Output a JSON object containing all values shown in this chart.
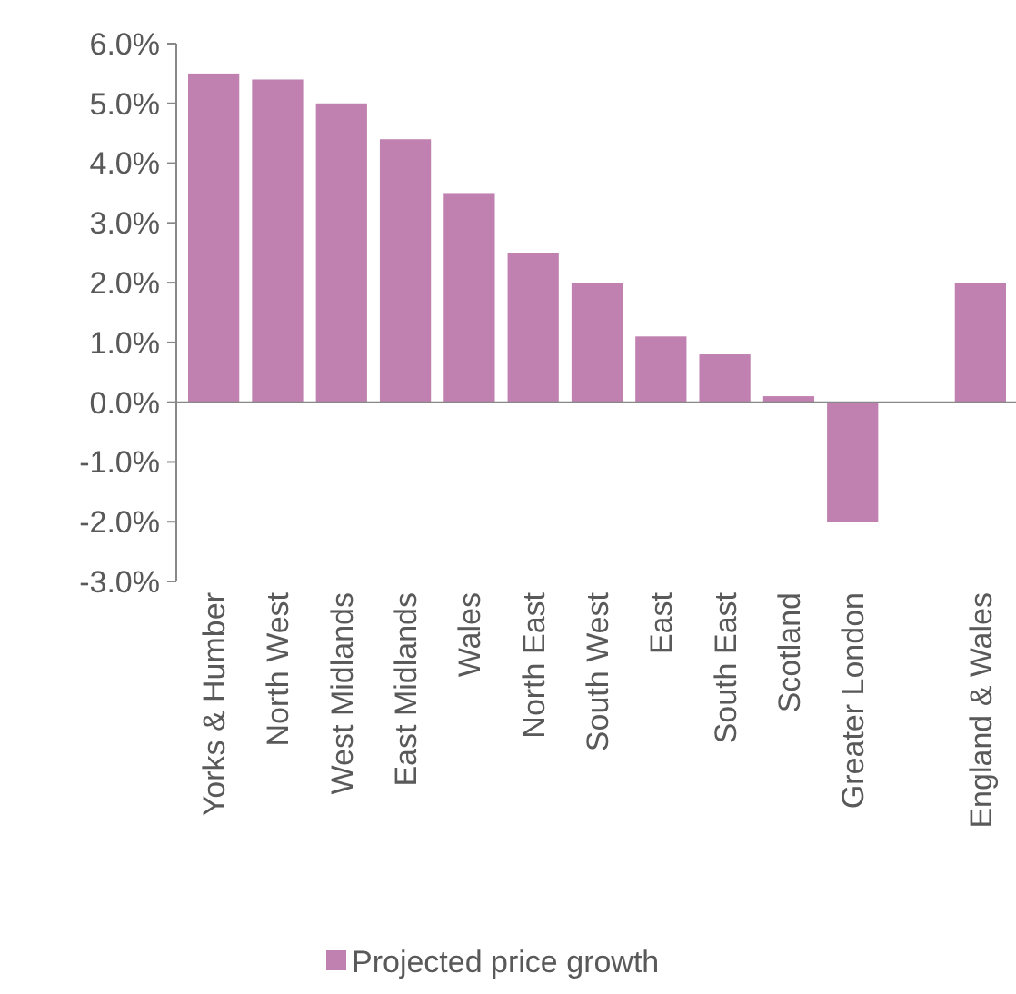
{
  "chart_data": {
    "type": "bar",
    "categories": [
      "Yorks & Humber",
      "North West",
      "West Midlands",
      "East Midlands",
      "Wales",
      "North East",
      "South West",
      "East",
      "South East",
      "Scotland",
      "Greater London",
      null,
      "England & Wales"
    ],
    "series": [
      {
        "name": "Projected price growth",
        "color": "#c080b0",
        "values": [
          5.5,
          5.4,
          5.0,
          4.4,
          3.5,
          2.5,
          2.0,
          1.1,
          0.8,
          0.1,
          -2.0,
          null,
          2.0
        ]
      }
    ],
    "ylim": [
      -3,
      6
    ],
    "yticks": [
      {
        "value": -3,
        "label": "-3.0%"
      },
      {
        "value": -2,
        "label": "-2.0%"
      },
      {
        "value": -1,
        "label": "-1.0%"
      },
      {
        "value": 0,
        "label": "0.0%"
      },
      {
        "value": 1,
        "label": "1.0%"
      },
      {
        "value": 2,
        "label": "2.0%"
      },
      {
        "value": 3,
        "label": "3.0%"
      },
      {
        "value": 4,
        "label": "4.0%"
      },
      {
        "value": 5,
        "label": "5.0%"
      },
      {
        "value": 6,
        "label": "6.0%"
      }
    ],
    "legend": "bottom"
  }
}
